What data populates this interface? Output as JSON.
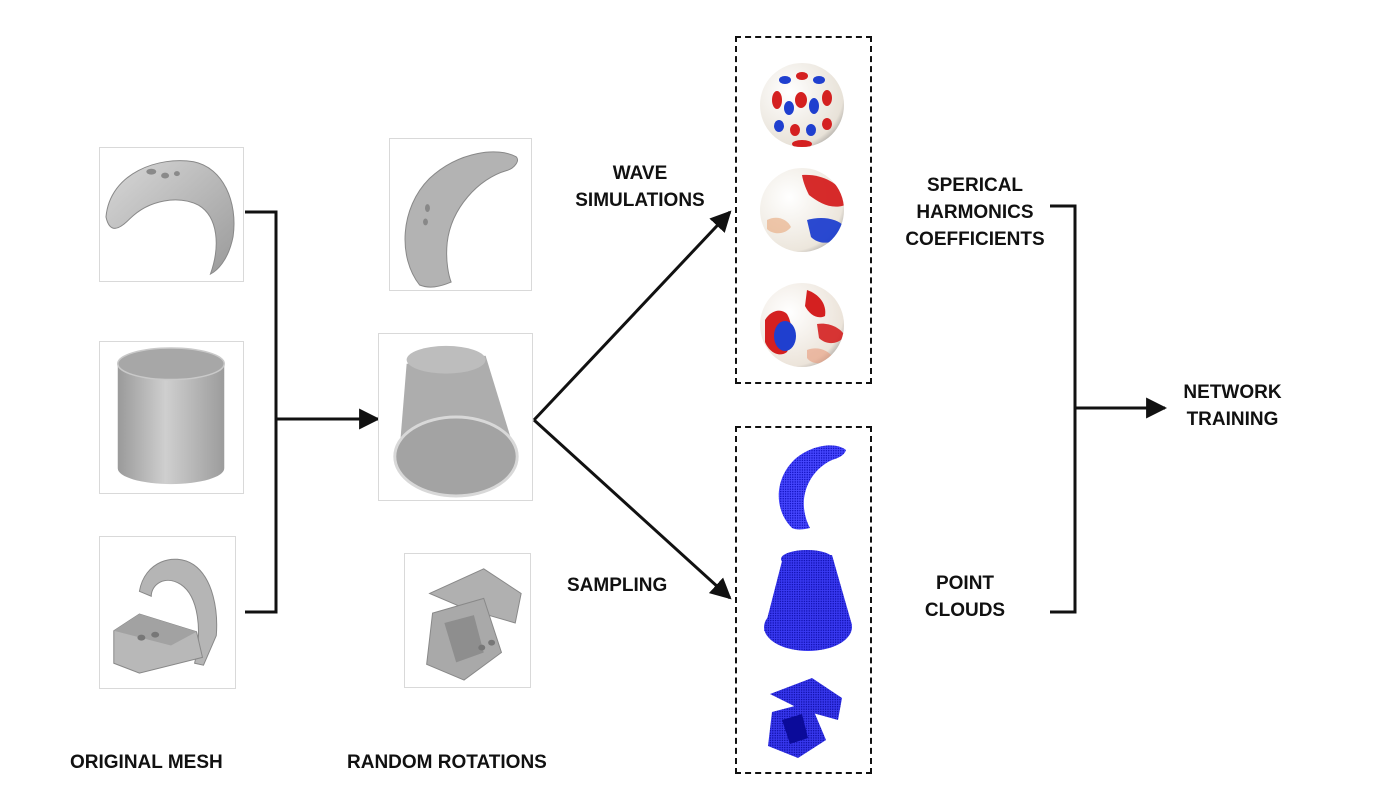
{
  "labels": {
    "original_mesh": "ORIGINAL MESH",
    "random_rotations": "RANDOM ROTATIONS",
    "wave_simulations_line1": "WAVE",
    "wave_simulations_line2": "SIMULATIONS",
    "sampling": "SAMPLING",
    "sph_line1": "SPERICAL",
    "sph_line2": "HARMONICS",
    "sph_line3": "COEFFICIENTS",
    "pc_line1": "POINT",
    "pc_line2": "CLOUDS",
    "net_line1": "NETWORK",
    "net_line2": "TRAINING"
  },
  "colors": {
    "mesh_gray": "#b8b8b8",
    "point_blue": "#1a1adc",
    "harmonic_red": "#d42020",
    "harmonic_blue": "#1f3fcf",
    "line": "#111111"
  },
  "images": {
    "original_meshes": [
      "crescent-mesh",
      "cylinder-mesh",
      "bracket-mesh"
    ],
    "rotated_meshes": [
      "crescent-rotated",
      "cylinder-rotated",
      "bracket-rotated"
    ],
    "harmonic_spheres": [
      "sphere-high-order",
      "sphere-mid-order",
      "sphere-low-order"
    ],
    "point_clouds": [
      "crescent-cloud",
      "cylinder-cloud",
      "bracket-cloud"
    ]
  }
}
